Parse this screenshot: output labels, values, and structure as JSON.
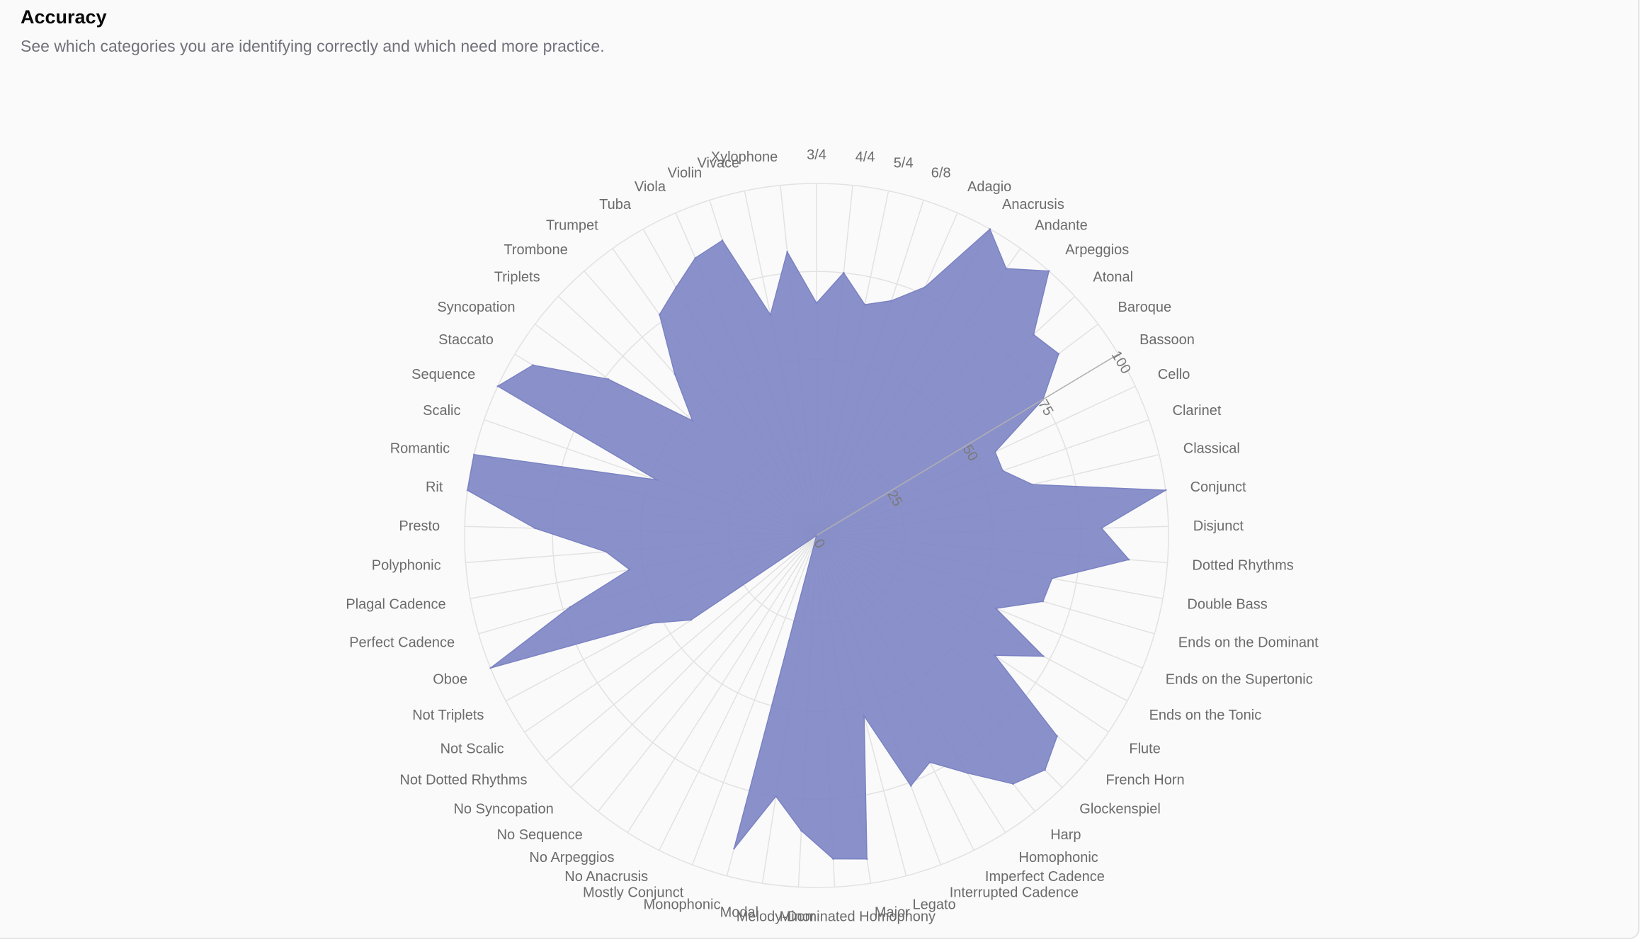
{
  "card": {
    "title": "Accuracy",
    "subtitle": "See which categories you are identifying correctly and which need more practice."
  },
  "colors": {
    "fill": "#8088c6",
    "stroke": "#7a82c2",
    "grid": "#e2e2e2",
    "label": "#6b6b6b"
  },
  "chart_data": {
    "type": "radar",
    "title": "",
    "range": [
      0,
      100
    ],
    "ticks": [
      "0",
      "25",
      "50",
      "75",
      "100"
    ],
    "grid": true,
    "categories": [
      "3/4",
      "4/4",
      "5/4",
      "6/8",
      "Adagio",
      "Anacrusis",
      "Andante",
      "Arpeggios",
      "Atonal",
      "Baroque",
      "Bassoon",
      "Cello",
      "Clarinet",
      "Classical",
      "Conjunct",
      "Disjunct",
      "Dotted Rhythms",
      "Double Bass",
      "Ends on the Dominant",
      "Ends on the Supertonic",
      "Ends on the Tonic",
      "Flute",
      "French Horn",
      "Glockenspiel",
      "Harp",
      "Homophonic",
      "Imperfect Cadence",
      "Interrupted Cadence",
      "Legato",
      "Major",
      "Melody-Dominated Homophony",
      "Minor",
      "Modal",
      "Monophonic",
      "Mostly Conjunct",
      "No Anacrusis",
      "No Arpeggios",
      "No Sequence",
      "No Syncopation",
      "Not Dotted Rhythms",
      "Not Scalic",
      "Not Triplets",
      "Oboe",
      "Perfect Cadence",
      "Plagal Cadence",
      "Polyphonic",
      "Presto",
      "Rit",
      "Romantic",
      "Scalic",
      "Sequence",
      "Staccato",
      "Syncopation",
      "Triplets",
      "Trombone",
      "Trumpet",
      "Tuba",
      "Viola",
      "Violin",
      "Vivace",
      "Xylophone"
    ],
    "values": [
      66,
      75,
      67,
      70,
      77,
      100,
      93,
      100,
      84,
      86,
      75,
      56,
      56,
      63,
      100,
      81,
      89,
      68,
      67,
      55,
      73,
      61,
      89,
      93,
      90,
      80,
      72,
      76,
      53,
      93,
      92,
      84,
      75,
      92,
      0,
      0,
      0,
      0,
      0,
      0,
      43,
      53,
      100,
      73,
      54,
      60,
      80,
      100,
      100,
      48,
      100,
      94,
      74,
      48,
      61,
      77,
      81,
      86,
      88,
      64,
      81
    ]
  }
}
